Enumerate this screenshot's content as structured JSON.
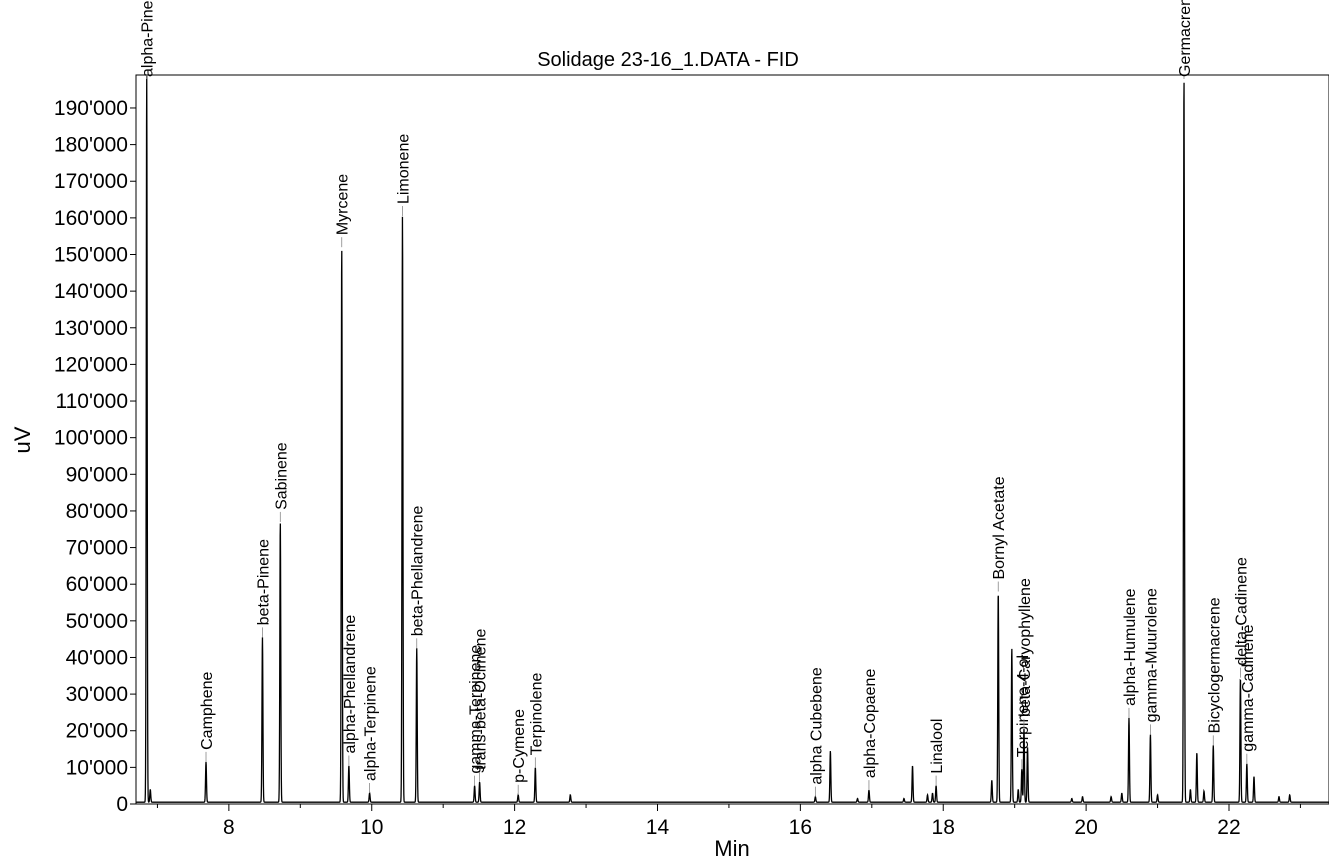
{
  "chart_data": {
    "type": "line",
    "title": "Solidage 23-16_1.DATA - FID",
    "xlabel": "Min",
    "ylabel": "uV",
    "xlim": [
      6.7,
      23.4
    ],
    "ylim": [
      0,
      199000
    ],
    "x_ticks": [
      8,
      10,
      12,
      14,
      16,
      18,
      20,
      22
    ],
    "x_tick_labels": [
      "8",
      "10",
      "12",
      "14",
      "16",
      "18",
      "20",
      "22"
    ],
    "y_ticks": [
      0,
      10000,
      20000,
      30000,
      40000,
      50000,
      60000,
      70000,
      80000,
      90000,
      100000,
      110000,
      120000,
      130000,
      140000,
      150000,
      160000,
      170000,
      180000,
      190000
    ],
    "y_tick_labels": [
      "0",
      "10'000",
      "20'000",
      "30'000",
      "40'000",
      "50'000",
      "60'000",
      "70'000",
      "80'000",
      "90'000",
      "100'000",
      "110'000",
      "120'000",
      "130'000",
      "140'000",
      "150'000",
      "160'000",
      "170'000",
      "180'000",
      "190'000"
    ],
    "grid": false,
    "legend": "none",
    "line_color": "#000000",
    "baseline": 500,
    "labeled_peaks": [
      {
        "label": "alpha-Pinene",
        "x": 6.85,
        "y": 199000
      },
      {
        "label": "Camphene",
        "x": 7.68,
        "y": 11500
      },
      {
        "label": "beta-Pinene",
        "x": 8.47,
        "y": 45500
      },
      {
        "label": "Sabinene",
        "x": 8.72,
        "y": 77000
      },
      {
        "label": "Myrcene",
        "x": 9.58,
        "y": 152000
      },
      {
        "label": "alpha-Phellandrene",
        "x": 9.68,
        "y": 10500
      },
      {
        "label": "alpha-Terpinene",
        "x": 9.97,
        "y": 3000
      },
      {
        "label": "Limonene",
        "x": 10.43,
        "y": 160500
      },
      {
        "label": "beta-Phellandrene",
        "x": 10.63,
        "y": 42500
      },
      {
        "label": "gamma-Terpinene",
        "x": 11.44,
        "y": 5000
      },
      {
        "label": "trans-beta-Ocimene",
        "x": 11.51,
        "y": 6000
      },
      {
        "label": "p-Cymene",
        "x": 12.05,
        "y": 2500
      },
      {
        "label": "Terpinolene",
        "x": 12.29,
        "y": 10000
      },
      {
        "label": "alpha Cubebene",
        "x": 16.21,
        "y": 2000
      },
      {
        "label": "alpha-Copaene",
        "x": 16.96,
        "y": 3800
      },
      {
        "label": "Linalool",
        "x": 17.9,
        "y": 5000
      },
      {
        "label": "Bornyl Acetate",
        "x": 18.77,
        "y": 58000
      },
      {
        "label": "Terpinene-4-ol",
        "x": 19.1,
        "y": 9500
      },
      {
        "label": "beta-Caryophyllene",
        "x": 19.13,
        "y": 20500
      },
      {
        "label": "alpha-Humulene",
        "x": 20.6,
        "y": 23500
      },
      {
        "label": "gamma-Muurolene",
        "x": 20.9,
        "y": 19000
      },
      {
        "label": "Germacrene D",
        "x": 21.37,
        "y": 199000
      },
      {
        "label": "Bicyclogermacrene",
        "x": 21.78,
        "y": 16000
      },
      {
        "label": "delta-Cadinene",
        "x": 22.16,
        "y": 34500
      },
      {
        "label": "gamma-Cadinene",
        "x": 22.25,
        "y": 11000
      }
    ],
    "unlabeled_peaks": [
      {
        "x": 6.9,
        "y": 4000
      },
      {
        "x": 12.78,
        "y": 2500
      },
      {
        "x": 16.42,
        "y": 14500
      },
      {
        "x": 16.8,
        "y": 1500
      },
      {
        "x": 17.45,
        "y": 1500
      },
      {
        "x": 17.57,
        "y": 10500
      },
      {
        "x": 17.78,
        "y": 2500
      },
      {
        "x": 17.85,
        "y": 3000
      },
      {
        "x": 18.68,
        "y": 6500
      },
      {
        "x": 18.96,
        "y": 42500
      },
      {
        "x": 19.05,
        "y": 4000
      },
      {
        "x": 19.18,
        "y": 15500
      },
      {
        "x": 19.8,
        "y": 1500
      },
      {
        "x": 19.95,
        "y": 2000
      },
      {
        "x": 20.35,
        "y": 2000
      },
      {
        "x": 20.5,
        "y": 3000
      },
      {
        "x": 21.0,
        "y": 2500
      },
      {
        "x": 21.46,
        "y": 4000
      },
      {
        "x": 21.55,
        "y": 14000
      },
      {
        "x": 21.65,
        "y": 3500
      },
      {
        "x": 22.35,
        "y": 7500
      },
      {
        "x": 22.7,
        "y": 2000
      },
      {
        "x": 22.85,
        "y": 2500
      }
    ]
  }
}
